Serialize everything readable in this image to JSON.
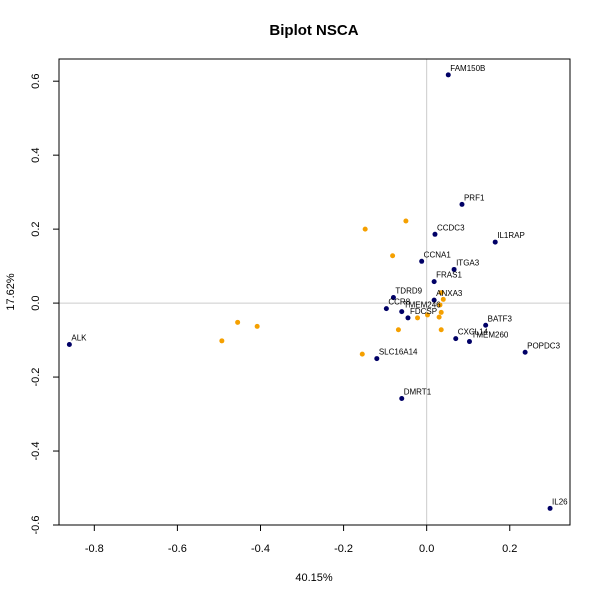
{
  "chart_data": {
    "type": "scatter",
    "title": "Biplot NSCA",
    "xlabel": "40.15%",
    "ylabel": "17.62%",
    "xlim": [
      -0.885,
      0.345
    ],
    "ylim": [
      -0.6,
      0.66
    ],
    "x_ticks": [
      -0.8,
      -0.6,
      -0.4,
      -0.2,
      0.0,
      0.2
    ],
    "x_tick_labels": [
      "-0.8",
      "-0.6",
      "-0.4",
      "-0.2",
      "0.0",
      "0.2"
    ],
    "y_ticks": [
      -0.6,
      -0.4,
      -0.2,
      0.0,
      0.2,
      0.4,
      0.6
    ],
    "y_tick_labels": [
      "-0.6",
      "-0.4",
      "-0.2",
      "0.0",
      "0.2",
      "0.4",
      "0.6"
    ],
    "grid": false,
    "reference_lines": {
      "x": 0,
      "y": 0,
      "color": "#cccccc"
    },
    "series": [
      {
        "color": "#000066",
        "marker": "circle",
        "points": [
          {
            "label": "FAM150B",
            "x": 0.052,
            "y": 0.617
          },
          {
            "label": "PRF1",
            "x": 0.085,
            "y": 0.267
          },
          {
            "label": "CCDC3",
            "x": 0.02,
            "y": 0.186
          },
          {
            "label": "IL1RAP",
            "x": 0.165,
            "y": 0.165
          },
          {
            "label": "CCNA1",
            "x": -0.012,
            "y": 0.113
          },
          {
            "label": "ITGA3",
            "x": 0.066,
            "y": 0.091
          },
          {
            "label": "FRAS1",
            "x": 0.018,
            "y": 0.058
          },
          {
            "label": "TDRD9",
            "x": -0.08,
            "y": 0.015
          },
          {
            "label": "ANXA3",
            "x": 0.018,
            "y": 0.008
          },
          {
            "label": "CCR8",
            "x": -0.097,
            "y": -0.015
          },
          {
            "label": "TMEM246",
            "x": -0.06,
            "y": -0.023
          },
          {
            "label": "FDCSP",
            "x": -0.045,
            "y": -0.04
          },
          {
            "label": "BATF3",
            "x": 0.142,
            "y": -0.06
          },
          {
            "label": "CXCL14",
            "x": 0.07,
            "y": -0.096
          },
          {
            "label": "TMEM260",
            "x": 0.103,
            "y": -0.104
          },
          {
            "label": "POPDC3",
            "x": 0.237,
            "y": -0.133
          },
          {
            "label": "ALK",
            "x": -0.86,
            "y": -0.112
          },
          {
            "label": "SLC16A14",
            "x": -0.12,
            "y": -0.15
          },
          {
            "label": "DMRT1",
            "x": -0.06,
            "y": -0.258
          },
          {
            "label": "IL26",
            "x": 0.297,
            "y": -0.555
          }
        ]
      },
      {
        "color": "#f5a000",
        "marker": "circle",
        "points": [
          {
            "x": -0.05,
            "y": 0.222
          },
          {
            "x": -0.148,
            "y": 0.2
          },
          {
            "x": -0.082,
            "y": 0.128
          },
          {
            "x": 0.035,
            "y": 0.028
          },
          {
            "x": 0.04,
            "y": 0.01
          },
          {
            "x": 0.032,
            "y": -0.005
          },
          {
            "x": 0.035,
            "y": -0.025
          },
          {
            "x": 0.03,
            "y": -0.038
          },
          {
            "x": 0.002,
            "y": -0.032
          },
          {
            "x": -0.022,
            "y": -0.04
          },
          {
            "x": -0.068,
            "y": -0.072
          },
          {
            "x": 0.035,
            "y": -0.072
          },
          {
            "x": -0.455,
            "y": -0.052
          },
          {
            "x": -0.408,
            "y": -0.063
          },
          {
            "x": -0.493,
            "y": -0.102
          },
          {
            "x": -0.155,
            "y": -0.138
          }
        ]
      }
    ]
  }
}
